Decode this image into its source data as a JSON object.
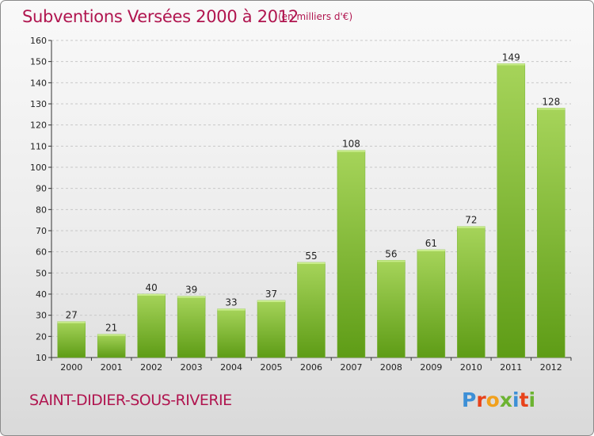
{
  "header": {
    "title": "Subventions Versées 2000 à 2012",
    "subtitle": "(en milliers d'€)"
  },
  "footer": {
    "town": "SAINT-DIDIER-SOUS-RIVERIE",
    "logo_text": "Proxiti",
    "logo_colors": [
      "#3d8fd6",
      "#e8421a",
      "#f1a01c",
      "#6cb332",
      "#3d8fd6",
      "#e8421a",
      "#6cb332"
    ]
  },
  "colors": {
    "title": "#b0154f",
    "bar_top": "#a6d45a",
    "bar_bottom": "#5e9c16",
    "grid": "#c8c8c8",
    "axis": "#333333"
  },
  "chart_data": {
    "type": "bar",
    "categories": [
      "2000",
      "2001",
      "2002",
      "2003",
      "2004",
      "2005",
      "2006",
      "2007",
      "2008",
      "2009",
      "2010",
      "2011",
      "2012"
    ],
    "values": [
      27,
      21,
      40,
      39,
      33,
      37,
      55,
      108,
      56,
      61,
      72,
      149,
      128
    ],
    "title": "Subventions Versées 2000 à 2012",
    "subtitle": "(en milliers d'€)",
    "xlabel": "",
    "ylabel": "",
    "ylim": [
      10,
      160
    ],
    "yticks": [
      10,
      20,
      30,
      40,
      50,
      60,
      70,
      80,
      90,
      100,
      110,
      120,
      130,
      140,
      150,
      160
    ],
    "grid": "horizontal dashed",
    "data_labels": true
  }
}
